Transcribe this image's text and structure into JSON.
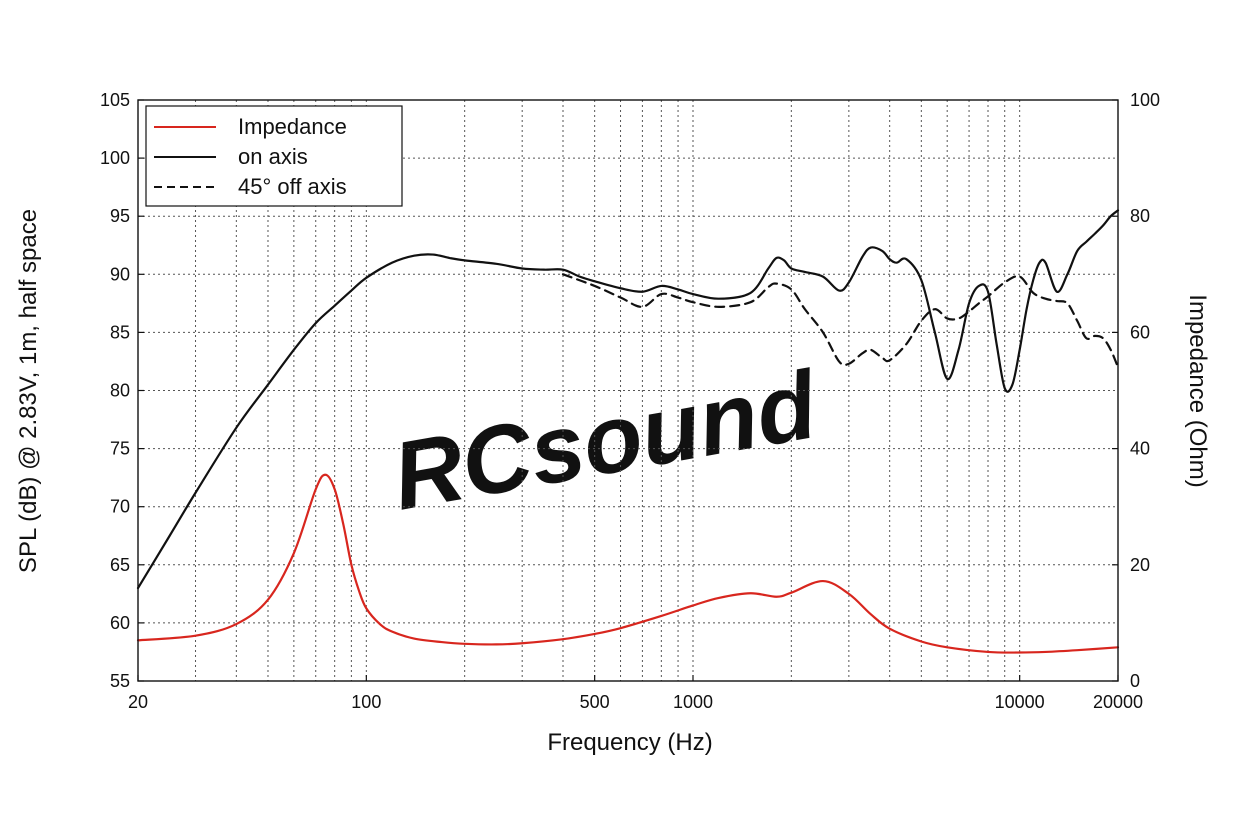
{
  "chart_data": {
    "type": "line",
    "xlabel": "Frequency (Hz)",
    "ylabel": "SPL (dB) @ 2.83V, 1m, half space",
    "y2label": "Impedance (Ohm)",
    "xscale": "log",
    "xlim": [
      20,
      20000
    ],
    "ylim": [
      55,
      105
    ],
    "y2lim": [
      0,
      100
    ],
    "xticks": [
      20,
      100,
      500,
      1000,
      10000,
      20000
    ],
    "xtick_labels": [
      "20",
      "100",
      "500",
      "1000",
      "10000",
      "20000"
    ],
    "yticks": [
      55,
      60,
      65,
      70,
      75,
      80,
      85,
      90,
      95,
      100,
      105
    ],
    "y2ticks": [
      0,
      20,
      40,
      60,
      80,
      100
    ],
    "grid": true,
    "legend_position": "top-left",
    "watermark": "RCsound",
    "series": [
      {
        "name": "Impedance",
        "axis": "right",
        "color": "#d8261e",
        "style": "solid",
        "x": [
          20,
          30,
          40,
          50,
          60,
          70,
          75,
          80,
          85,
          90,
          95,
          100,
          110,
          120,
          140,
          170,
          200,
          250,
          300,
          400,
          500,
          600,
          800,
          1000,
          1200,
          1500,
          1800,
          2000,
          2500,
          3000,
          3500,
          4000,
          5000,
          6000,
          8000,
          10000,
          12000,
          15000,
          20000
        ],
        "y": [
          7.0,
          7.8,
          9.8,
          14.0,
          22.0,
          33.0,
          35.5,
          33.0,
          27.0,
          20.0,
          15.5,
          12.5,
          9.8,
          8.5,
          7.3,
          6.7,
          6.4,
          6.3,
          6.5,
          7.2,
          8.1,
          9.1,
          11.2,
          13.0,
          14.3,
          15.1,
          14.5,
          15.2,
          17.2,
          15.0,
          11.5,
          9.0,
          6.8,
          5.8,
          5.0,
          4.9,
          5.0,
          5.3,
          5.8
        ]
      },
      {
        "name": "on axis",
        "axis": "left",
        "color": "#111111",
        "style": "solid",
        "x": [
          20,
          25,
          30,
          40,
          50,
          60,
          70,
          80,
          90,
          100,
          120,
          140,
          160,
          180,
          200,
          250,
          300,
          350,
          400,
          450,
          500,
          600,
          700,
          800,
          900,
          1000,
          1200,
          1500,
          1700,
          1800,
          1900,
          2000,
          2200,
          2500,
          2800,
          3000,
          3300,
          3500,
          3800,
          4000,
          4200,
          4500,
          5000,
          5500,
          6000,
          6500,
          7000,
          7500,
          8000,
          8500,
          9000,
          9500,
          10000,
          10500,
          11000,
          11500,
          12000,
          13000,
          14000,
          15000,
          16000,
          17000,
          18000,
          19000,
          20000
        ],
        "y": [
          63.0,
          67.5,
          71.2,
          76.8,
          80.5,
          83.5,
          85.8,
          87.3,
          88.6,
          89.7,
          91.0,
          91.6,
          91.7,
          91.4,
          91.2,
          90.9,
          90.5,
          90.4,
          90.4,
          89.8,
          89.4,
          88.8,
          88.5,
          89.0,
          88.7,
          88.3,
          87.9,
          88.4,
          90.5,
          91.4,
          91.2,
          90.5,
          90.2,
          89.8,
          88.6,
          89.3,
          91.5,
          92.3,
          92.0,
          91.3,
          91.0,
          91.3,
          89.5,
          85.0,
          81.0,
          83.5,
          87.5,
          89.0,
          88.5,
          84.0,
          80.2,
          80.5,
          83.5,
          87.0,
          89.5,
          91.0,
          91.0,
          88.5,
          90.0,
          92.0,
          92.8,
          93.5,
          94.2,
          95.0,
          95.5
        ]
      },
      {
        "name": "45° off axis",
        "axis": "left",
        "color": "#111111",
        "style": "dashed",
        "x": [
          400,
          500,
          600,
          700,
          800,
          900,
          1000,
          1200,
          1500,
          1700,
          1800,
          2000,
          2200,
          2500,
          2800,
          3000,
          3300,
          3500,
          3800,
          4000,
          4500,
          5000,
          5500,
          6000,
          6500,
          7000,
          7500,
          8000,
          9000,
          10000,
          11000,
          12000,
          13000,
          14000,
          15000,
          16000,
          17000,
          18000,
          19000,
          20000
        ],
        "y": [
          90.0,
          89.0,
          88.0,
          87.2,
          88.3,
          88.0,
          87.6,
          87.2,
          87.6,
          88.9,
          89.2,
          88.7,
          87.0,
          85.0,
          82.5,
          82.3,
          83.2,
          83.5,
          82.8,
          82.6,
          84.0,
          86.0,
          87.0,
          86.2,
          86.2,
          86.8,
          87.5,
          88.1,
          89.3,
          89.8,
          88.4,
          87.9,
          87.7,
          87.5,
          86.0,
          84.5,
          84.7,
          84.5,
          83.5,
          82.0
        ]
      }
    ]
  }
}
